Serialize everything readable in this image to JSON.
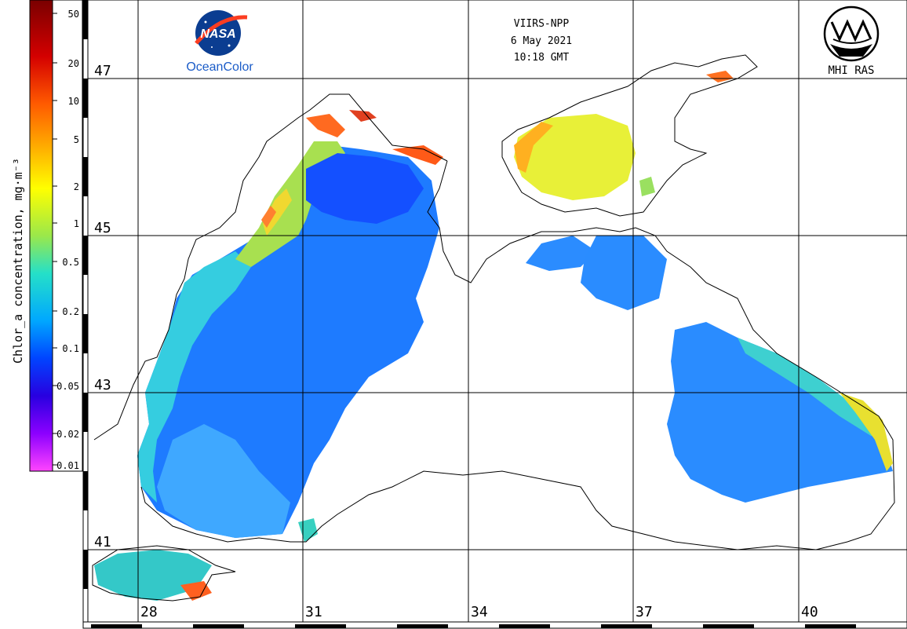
{
  "header": {
    "satellite": "VIIRS-NPP",
    "date": "6 May 2021",
    "time": "10:18 GMT"
  },
  "logos": {
    "nasa_wordmark": "NASA",
    "nasa_caption": "OceanColor",
    "mhi_caption": "MHI RAS"
  },
  "colorbar": {
    "title": "Chlor_a concentration, mg·m⁻³",
    "ticks": [
      "50",
      "20",
      "10",
      "5",
      "2",
      "1",
      "0.5",
      "0.2",
      "0.1",
      "0.05",
      "0.02",
      "0.01"
    ],
    "gradient_colors": [
      "#7a0000",
      "#d40000",
      "#ff5a00",
      "#ffb400",
      "#ffff00",
      "#9be84a",
      "#25e0c8",
      "#00a8ff",
      "#0045ff",
      "#2800e0",
      "#8c00ff",
      "#ff44ff"
    ]
  },
  "grid": {
    "latitude_labels": [
      "47",
      "45",
      "43",
      "41"
    ],
    "longitude_labels": [
      "28",
      "31",
      "34",
      "37",
      "40"
    ]
  },
  "colors": {
    "coast": "#000000",
    "grid": "#000000",
    "deep_water": "#1e6fff",
    "mid_water": "#2a9bff",
    "shelf_water": "#3ad0d8",
    "productive": "#f0e030",
    "very_high": "#ff5020"
  }
}
